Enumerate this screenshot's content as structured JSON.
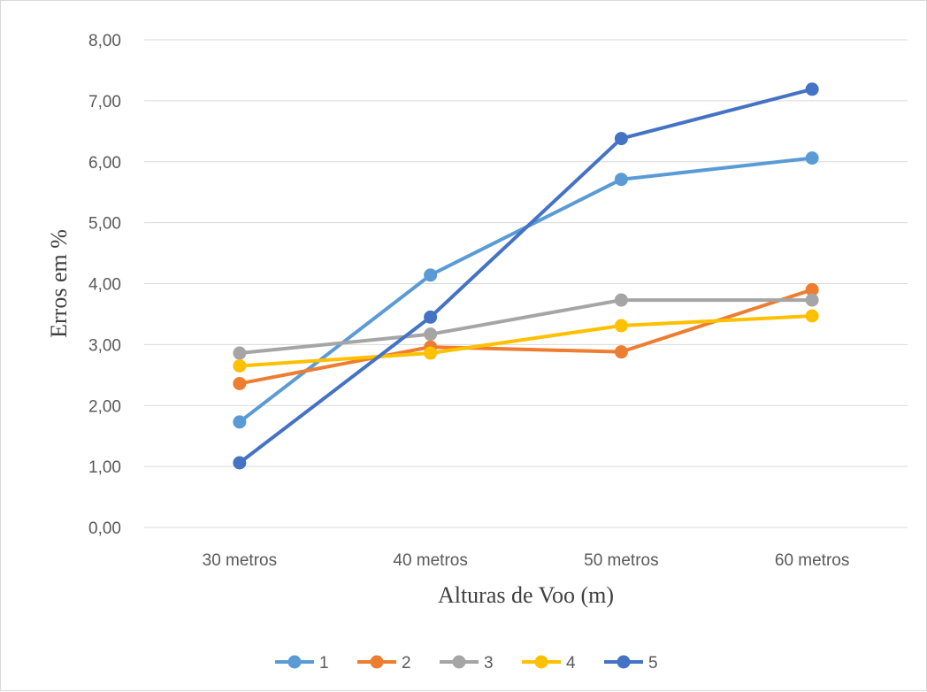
{
  "chart_data": {
    "type": "line",
    "categories": [
      "30 metros",
      "40 metros",
      "50 metros",
      "60 metros"
    ],
    "xlabel": "Alturas de Voo (m)",
    "ylabel": "Erros em %",
    "ylim": [
      0,
      8
    ],
    "y_ticks": [
      "0,00",
      "1,00",
      "2,00",
      "3,00",
      "4,00",
      "5,00",
      "6,00",
      "7,00",
      "8,00"
    ],
    "grid": "horizontal",
    "legend_position": "bottom",
    "series": [
      {
        "name": "1",
        "color": "#5b9bd5",
        "values": [
          1.73,
          4.14,
          5.71,
          6.06
        ]
      },
      {
        "name": "2",
        "color": "#ed7d31",
        "values": [
          2.36,
          2.96,
          2.88,
          3.9
        ]
      },
      {
        "name": "3",
        "color": "#a5a5a5",
        "values": [
          2.86,
          3.17,
          3.73,
          3.73
        ]
      },
      {
        "name": "4",
        "color": "#ffc000",
        "values": [
          2.65,
          2.86,
          3.31,
          3.47
        ]
      },
      {
        "name": "5",
        "color": "#4472c4",
        "values": [
          1.06,
          3.45,
          6.38,
          7.19
        ]
      }
    ]
  }
}
